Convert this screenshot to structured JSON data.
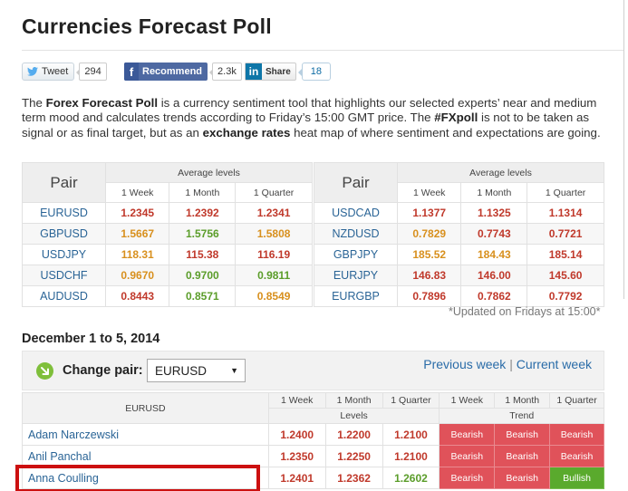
{
  "page": {
    "title": "Currencies Forecast Poll"
  },
  "share": {
    "tweet_label": "Tweet",
    "tweet_count": "294",
    "fb_label": "Recommend",
    "fb_count": "2.3k",
    "in_label": "Share",
    "in_count": "18"
  },
  "description": {
    "p1": "The ",
    "b1": "Forex Forecast Poll",
    "p2": " is a currency sentiment tool that highlights our selected experts’ near and medium term mood and calculates trends according to Friday’s 15:00 GMT price. The ",
    "b2": "#FXpoll",
    "p3": " is not to be taken as signal or as final target, but as an ",
    "b3": "exchange rates",
    "p4": " heat map of where sentiment and expectations are going."
  },
  "avg_tables": {
    "pair_header": "Pair",
    "group_header": "Average levels",
    "cols": [
      "1 Week",
      "1 Month",
      "1 Quarter"
    ],
    "left": [
      {
        "pair": "EURUSD",
        "v": [
          "1.2345",
          "1.2392",
          "1.2341"
        ],
        "c": [
          "red",
          "red",
          "red"
        ]
      },
      {
        "pair": "GBPUSD",
        "v": [
          "1.5667",
          "1.5756",
          "1.5808"
        ],
        "c": [
          "orange",
          "green",
          "orange"
        ]
      },
      {
        "pair": "USDJPY",
        "v": [
          "118.31",
          "115.38",
          "116.19"
        ],
        "c": [
          "orange",
          "red",
          "red"
        ]
      },
      {
        "pair": "USDCHF",
        "v": [
          "0.9670",
          "0.9700",
          "0.9811"
        ],
        "c": [
          "orange",
          "green",
          "green"
        ]
      },
      {
        "pair": "AUDUSD",
        "v": [
          "0.8443",
          "0.8571",
          "0.8549"
        ],
        "c": [
          "red",
          "green",
          "orange"
        ]
      }
    ],
    "right": [
      {
        "pair": "USDCAD",
        "v": [
          "1.1377",
          "1.1325",
          "1.1314"
        ],
        "c": [
          "red",
          "red",
          "red"
        ]
      },
      {
        "pair": "NZDUSD",
        "v": [
          "0.7829",
          "0.7743",
          "0.7721"
        ],
        "c": [
          "orange",
          "red",
          "red"
        ]
      },
      {
        "pair": "GBPJPY",
        "v": [
          "185.52",
          "184.43",
          "185.14"
        ],
        "c": [
          "orange",
          "orange",
          "red"
        ]
      },
      {
        "pair": "EURJPY",
        "v": [
          "146.83",
          "146.00",
          "145.60"
        ],
        "c": [
          "red",
          "red",
          "red"
        ]
      },
      {
        "pair": "EURGBP",
        "v": [
          "0.7896",
          "0.7862",
          "0.7792"
        ],
        "c": [
          "red",
          "red",
          "red"
        ]
      }
    ],
    "updated_note": "*Updated on Fridays at 15:00*"
  },
  "week": {
    "title": "December 1 to 5, 2014",
    "change_label": "Change pair:",
    "selected_pair": "EURUSD",
    "prev_link": "Previous week",
    "separator": " | ",
    "current_link": "Current week"
  },
  "poll": {
    "pair": "EURUSD",
    "cols": [
      "1 Week",
      "1 Month",
      "1 Quarter",
      "1 Week",
      "1 Month",
      "1 Quarter"
    ],
    "levels_label": "Levels",
    "trend_label": "Trend",
    "rows": [
      {
        "name": "Adam Narczewski",
        "levels": [
          "1.2400",
          "1.2200",
          "1.2100"
        ],
        "trend": [
          "Bearish",
          "Bearish",
          "Bearish"
        ]
      },
      {
        "name": "Anil Panchal",
        "levels": [
          "1.2350",
          "1.2250",
          "1.2100"
        ],
        "trend": [
          "Bearish",
          "Bearish",
          "Bearish"
        ]
      },
      {
        "name": "Anna Coulling",
        "levels": [
          "1.2401",
          "1.2362",
          "1.2602"
        ],
        "trend": [
          "Bearish",
          "Bearish",
          "Bullish"
        ]
      }
    ]
  },
  "colors": {
    "red": "#c0392b",
    "green": "#5b9d2a",
    "orange": "#d8901e",
    "bearish_bg": "#e0525a",
    "bullish_bg": "#5aaa2d",
    "link": "#2a6496"
  }
}
